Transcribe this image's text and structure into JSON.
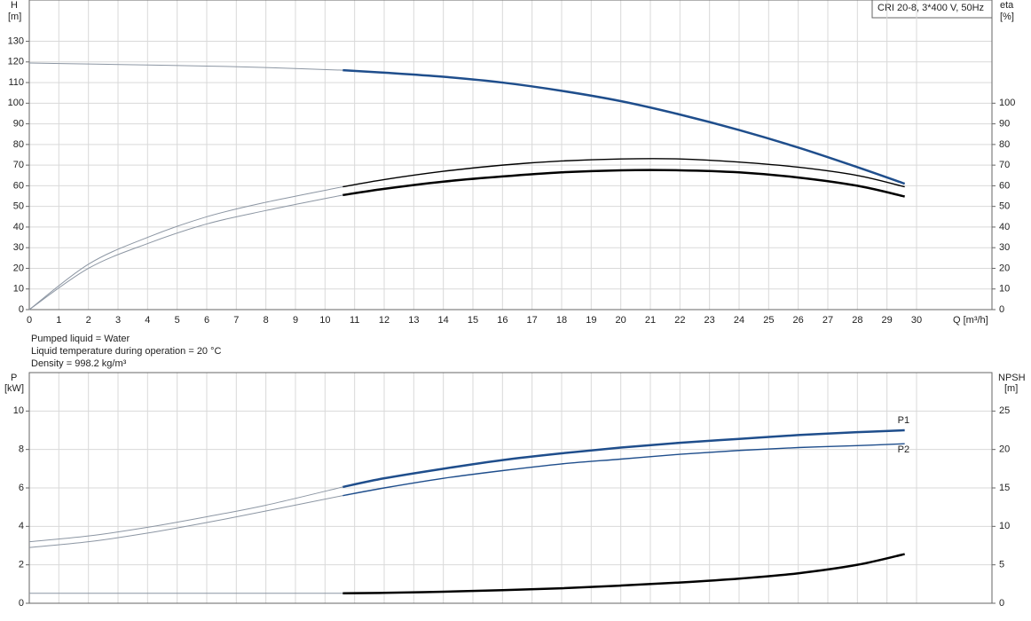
{
  "chart_data": [
    {
      "type": "line",
      "title": "CRI 20-8, 3*400 V, 50Hz",
      "ylabel": "H",
      "yunit": "[m]",
      "y2label": "eta",
      "y2unit": "[%]",
      "xlabel": "Q [m³/h]",
      "x": [
        0,
        2,
        4,
        6,
        8,
        10.6,
        12,
        14,
        16,
        18,
        20,
        22,
        24,
        26,
        28,
        29.6
      ],
      "xlim": [
        0,
        32.55
      ],
      "xticks": [
        0,
        1,
        2,
        3,
        4,
        5,
        6,
        7,
        8,
        9,
        10,
        11,
        12,
        13,
        14,
        15,
        16,
        17,
        18,
        19,
        20,
        21,
        22,
        23,
        24,
        25,
        26,
        27,
        28,
        29,
        30
      ],
      "ylim": [
        0,
        150
      ],
      "yticks": [
        0,
        10,
        20,
        30,
        40,
        50,
        60,
        70,
        80,
        90,
        100,
        110,
        120,
        130
      ],
      "y2lim": [
        0,
        150
      ],
      "y2ticks": [
        0,
        10,
        20,
        30,
        40,
        50,
        60,
        70,
        80,
        90,
        100
      ],
      "grid": true,
      "operating_range": [
        10.6,
        29.6
      ],
      "thin_color": "#8c96a3",
      "series": [
        {
          "color": "#1f4e8c",
          "values": [
            119.5,
            119,
            118.5,
            118,
            117.3,
            116,
            114.8,
            112.8,
            110,
            106,
            101,
            94.5,
            87,
            78.5,
            69,
            61
          ]
        },
        {
          "color": "#000000",
          "axis": "y2",
          "values": [
            0,
            22,
            35,
            45,
            52,
            59.5,
            63,
            67,
            70,
            72,
            73,
            73,
            71.5,
            69,
            65,
            59.5
          ]
        },
        {
          "color": "#000000",
          "axis": "y2",
          "values": [
            0,
            20,
            32,
            41.5,
            48,
            55.5,
            58.5,
            62,
            64.5,
            66.5,
            67.5,
            67.5,
            66.5,
            64,
            60,
            54.8
          ]
        }
      ],
      "annotations": [
        "Pumped liquid = Water",
        "Liquid temperature during operation = 20 °C",
        "Density = 998.2 kg/m³"
      ]
    },
    {
      "type": "line",
      "ylabel": "P",
      "yunit": "[kW]",
      "y2label": "NPSH",
      "y2unit": "[m]",
      "x": [
        0,
        2,
        4,
        6,
        8,
        10.6,
        12,
        14,
        16,
        18,
        20,
        22,
        24,
        26,
        28,
        29.6
      ],
      "xlim": [
        0,
        32.55
      ],
      "ylim": [
        0,
        12
      ],
      "yticks": [
        0,
        2,
        4,
        6,
        8,
        10
      ],
      "y2lim": [
        0,
        30
      ],
      "y2ticks": [
        0,
        5,
        10,
        15,
        20,
        25
      ],
      "grid": true,
      "operating_range": [
        10.6,
        29.6
      ],
      "thin_color": "#8c96a3",
      "series": [
        {
          "name": "P1",
          "color": "#1f4e8c",
          "values": [
            3.2,
            3.5,
            3.95,
            4.5,
            5.1,
            6.05,
            6.5,
            7.0,
            7.45,
            7.8,
            8.1,
            8.35,
            8.55,
            8.75,
            8.9,
            9.0
          ]
        },
        {
          "name": "P2",
          "color": "#1f4e8c",
          "values": [
            2.9,
            3.2,
            3.65,
            4.2,
            4.8,
            5.6,
            6.0,
            6.5,
            6.9,
            7.25,
            7.5,
            7.75,
            7.95,
            8.1,
            8.2,
            8.3
          ]
        },
        {
          "color": "#000000",
          "axis": "y2",
          "values": [
            1.3,
            1.3,
            1.3,
            1.3,
            1.3,
            1.3,
            1.35,
            1.5,
            1.7,
            1.95,
            2.3,
            2.7,
            3.2,
            3.9,
            5.0,
            6.4
          ]
        }
      ]
    }
  ]
}
